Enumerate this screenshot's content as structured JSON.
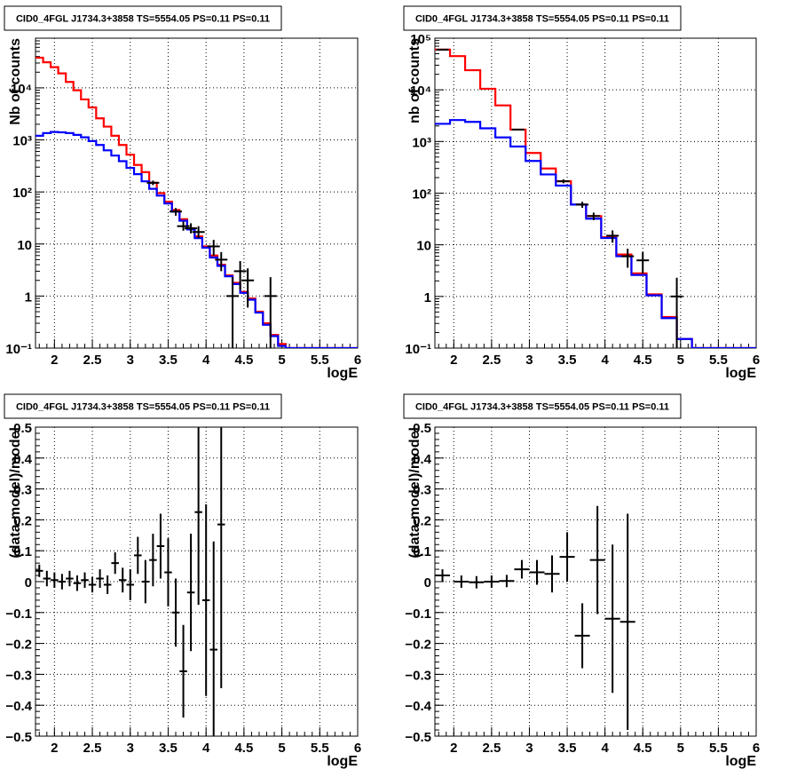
{
  "panel_title": "CID0_4FGL J1734.3+3858 TS=5554.05 PS=0.11 PS=0.11",
  "colors": {
    "data": "#000000",
    "total_model": "#ff0000",
    "source_model": "#0000ff",
    "grid": "#000000"
  },
  "chart_data": [
    {
      "type": "line",
      "title": "CID0_4FGL J1734.3+3858 TS=5554.05 PS=0.11 PS=0.11",
      "xlabel": "logE",
      "ylabel": "Nb of counts",
      "xlim": [
        1.75,
        6.0
      ],
      "ylim": [
        0.1,
        90000
      ],
      "yscale": "log",
      "grid": true,
      "x_ticks": [
        "2",
        "2.5",
        "3",
        "3.5",
        "4",
        "4.5",
        "5",
        "5.5",
        "6"
      ],
      "y_ticks": [
        "10⁻¹",
        "1",
        "10",
        "10²",
        "10³",
        "10⁴"
      ],
      "bin_edges": [
        1.75,
        1.85,
        1.95,
        2.05,
        2.15,
        2.25,
        2.35,
        2.45,
        2.55,
        2.65,
        2.75,
        2.85,
        2.95,
        3.05,
        3.15,
        3.25,
        3.35,
        3.45,
        3.55,
        3.65,
        3.75,
        3.85,
        3.95,
        4.05,
        4.15,
        4.25,
        4.35,
        4.45,
        4.55,
        4.65,
        4.75,
        4.85,
        4.95,
        5.05,
        5.15,
        5.25,
        5.35,
        5.45,
        5.55,
        5.65,
        5.75,
        5.85,
        5.95,
        6.0
      ],
      "series": [
        {
          "name": "",
          "style": "total-model",
          "values": [
            38000,
            31000,
            25000,
            19000,
            13000,
            9000,
            6000,
            4200,
            2600,
            1800,
            1200,
            800,
            520,
            330,
            240,
            150,
            95,
            65,
            45,
            30,
            20,
            14,
            9,
            6,
            4,
            2.5,
            1.8,
            1.2,
            0.9,
            0.5,
            0.3,
            0.18,
            0.12,
            0.1,
            0.1,
            0.1,
            0.1,
            0.1,
            0.1,
            0.1,
            0.1,
            0.1,
            0.1
          ]
        },
        {
          "name": "",
          "style": "source-model",
          "values": [
            1200,
            1350,
            1420,
            1400,
            1350,
            1250,
            1120,
            950,
            800,
            630,
            500,
            390,
            290,
            220,
            160,
            115,
            85,
            60,
            42,
            28,
            19,
            13,
            8.5,
            5.5,
            3.8,
            2.4,
            1.7,
            1.15,
            0.85,
            0.48,
            0.28,
            0.17,
            0.11,
            0.1,
            0.1,
            0.1,
            0.1,
            0.1,
            0.1,
            0.1,
            0.1,
            0.1,
            0.1
          ]
        }
      ],
      "data_points": [
        {
          "x": 3.3,
          "y": 150,
          "ylo": 135,
          "yhi": 165
        },
        {
          "x": 3.6,
          "y": 42,
          "ylo": 35,
          "yhi": 49
        },
        {
          "x": 3.7,
          "y": 22,
          "ylo": 18,
          "yhi": 27
        },
        {
          "x": 3.8,
          "y": 20,
          "ylo": 16,
          "yhi": 25
        },
        {
          "x": 3.9,
          "y": 17,
          "ylo": 13,
          "yhi": 22
        },
        {
          "x": 4.1,
          "y": 9,
          "ylo": 6,
          "yhi": 12
        },
        {
          "x": 4.2,
          "y": 5,
          "ylo": 3,
          "yhi": 7
        },
        {
          "x": 4.35,
          "y": 1,
          "ylo": 0.1,
          "yhi": 2.3
        },
        {
          "x": 4.45,
          "y": 3,
          "ylo": 1.3,
          "yhi": 4.7
        },
        {
          "x": 4.55,
          "y": 2,
          "ylo": 0.6,
          "yhi": 3.4
        },
        {
          "x": 4.85,
          "y": 1,
          "ylo": 0.1,
          "yhi": 2.3
        }
      ]
    },
    {
      "type": "line",
      "title": "CID0_4FGL J1734.3+3858 TS=5554.05 PS=0.11 PS=0.11",
      "xlabel": "logE",
      "ylabel": "nb of counts",
      "xlim": [
        1.75,
        6.0
      ],
      "ylim": [
        0.1,
        100000
      ],
      "yscale": "log",
      "grid": true,
      "x_ticks": [
        "2",
        "2.5",
        "3",
        "3.5",
        "4",
        "4.5",
        "5",
        "5.5",
        "6"
      ],
      "y_ticks": [
        "10⁻¹",
        "1",
        "10",
        "10²",
        "10³",
        "10⁴",
        "10⁵"
      ],
      "bin_edges": [
        1.75,
        1.95,
        2.15,
        2.35,
        2.55,
        2.75,
        2.95,
        3.15,
        3.35,
        3.55,
        3.75,
        3.95,
        4.15,
        4.35,
        4.55,
        4.75,
        4.95,
        5.15,
        5.35,
        5.55,
        5.75,
        5.95,
        6.0
      ],
      "series": [
        {
          "name": "",
          "style": "total-model",
          "values": [
            60000,
            45000,
            24000,
            10500,
            5000,
            1700,
            600,
            300,
            170,
            60,
            36,
            14,
            6.5,
            2.8,
            1.1,
            0.4,
            0.15,
            0.1,
            0.1,
            0.1,
            0.1,
            0.1
          ]
        },
        {
          "name": "",
          "style": "source-model",
          "values": [
            2200,
            2600,
            2400,
            1800,
            1200,
            800,
            420,
            230,
            140,
            60,
            32,
            13.5,
            6,
            2.6,
            1.05,
            0.38,
            0.15,
            0.1,
            0.1,
            0.1,
            0.1,
            0.1
          ]
        }
      ],
      "data_points": [
        {
          "x": 1.85,
          "y": 60000,
          "ylo": 59000,
          "yhi": 61000
        },
        {
          "x": 2.85,
          "y": 1700,
          "ylo": 1650,
          "yhi": 1750
        },
        {
          "x": 3.45,
          "y": 170,
          "ylo": 155,
          "yhi": 185
        },
        {
          "x": 3.7,
          "y": 60,
          "ylo": 52,
          "yhi": 68
        },
        {
          "x": 3.85,
          "y": 36,
          "ylo": 30,
          "yhi": 42
        },
        {
          "x": 4.1,
          "y": 15,
          "ylo": 11,
          "yhi": 19
        },
        {
          "x": 4.3,
          "y": 6,
          "ylo": 3.6,
          "yhi": 8.4
        },
        {
          "x": 4.5,
          "y": 5,
          "ylo": 2.8,
          "yhi": 7.2
        },
        {
          "x": 4.95,
          "y": 1,
          "ylo": 0.1,
          "yhi": 2.3
        }
      ]
    },
    {
      "type": "scatter",
      "title": "CID0_4FGL J1734.3+3858 TS=5554.05 PS=0.11 PS=0.11",
      "xlabel": "logE",
      "ylabel": "(data-model)/model",
      "xlim": [
        1.75,
        6.0
      ],
      "ylim": [
        -0.5,
        0.5
      ],
      "yscale": "linear",
      "grid": true,
      "x_ticks": [
        "2",
        "2.5",
        "3",
        "3.5",
        "4",
        "4.5",
        "5",
        "5.5",
        "6"
      ],
      "y_ticks": [
        "−0.5",
        "−0.4",
        "−0.3",
        "−0.2",
        "−0.1",
        "0",
        "0.1",
        "0.2",
        "0.3",
        "0.4",
        "0.5"
      ],
      "points": [
        {
          "x": 1.8,
          "y": 0.035,
          "err": 0.02,
          "xerr": 0.05
        },
        {
          "x": 1.9,
          "y": 0.01,
          "err": 0.025,
          "xerr": 0.05
        },
        {
          "x": 2.0,
          "y": 0.005,
          "err": 0.025,
          "xerr": 0.05
        },
        {
          "x": 2.1,
          "y": 0.0,
          "err": 0.025,
          "xerr": 0.05
        },
        {
          "x": 2.2,
          "y": 0.01,
          "err": 0.025,
          "xerr": 0.05
        },
        {
          "x": 2.3,
          "y": -0.005,
          "err": 0.025,
          "xerr": 0.05
        },
        {
          "x": 2.4,
          "y": 0.005,
          "err": 0.025,
          "xerr": 0.05
        },
        {
          "x": 2.5,
          "y": -0.01,
          "err": 0.025,
          "xerr": 0.05
        },
        {
          "x": 2.6,
          "y": 0.01,
          "err": 0.03,
          "xerr": 0.05
        },
        {
          "x": 2.7,
          "y": -0.01,
          "err": 0.03,
          "xerr": 0.05
        },
        {
          "x": 2.8,
          "y": 0.06,
          "err": 0.035,
          "xerr": 0.05
        },
        {
          "x": 2.9,
          "y": 0.005,
          "err": 0.04,
          "xerr": 0.05
        },
        {
          "x": 3.0,
          "y": -0.01,
          "err": 0.05,
          "xerr": 0.05
        },
        {
          "x": 3.1,
          "y": 0.085,
          "err": 0.06,
          "xerr": 0.05
        },
        {
          "x": 3.2,
          "y": 0.0,
          "err": 0.07,
          "xerr": 0.05
        },
        {
          "x": 3.3,
          "y": 0.07,
          "err": 0.085,
          "xerr": 0.05
        },
        {
          "x": 3.4,
          "y": 0.115,
          "err": 0.105,
          "xerr": 0.05
        },
        {
          "x": 3.5,
          "y": 0.03,
          "err": 0.11,
          "xerr": 0.05
        },
        {
          "x": 3.6,
          "y": -0.1,
          "err": 0.11,
          "xerr": 0.05
        },
        {
          "x": 3.7,
          "y": -0.29,
          "err": 0.15,
          "xerr": 0.05
        },
        {
          "x": 3.8,
          "y": -0.035,
          "err": 0.19,
          "xerr": 0.05
        },
        {
          "x": 3.9,
          "y": 0.225,
          "err": 0.3,
          "xerr": 0.05
        },
        {
          "x": 4.0,
          "y": -0.06,
          "err": 0.31,
          "xerr": 0.05
        },
        {
          "x": 4.1,
          "y": -0.22,
          "err": 0.35,
          "xerr": 0.05
        },
        {
          "x": 4.2,
          "y": 0.185,
          "err": 0.53,
          "xerr": 0.05
        }
      ]
    },
    {
      "type": "scatter",
      "title": "CID0_4FGL J1734.3+3858 TS=5554.05 PS=0.11 PS=0.11",
      "xlabel": "logE",
      "ylabel": "(data-model)/model",
      "xlim": [
        1.75,
        6.0
      ],
      "ylim": [
        -0.5,
        0.5
      ],
      "yscale": "linear",
      "grid": true,
      "x_ticks": [
        "2",
        "2.5",
        "3",
        "3.5",
        "4",
        "4.5",
        "5",
        "5.5",
        "6"
      ],
      "y_ticks": [
        "−0.5",
        "−0.4",
        "−0.3",
        "−0.2",
        "−0.1",
        "0",
        "0.1",
        "0.2",
        "0.3",
        "0.4",
        "0.5"
      ],
      "points": [
        {
          "x": 1.85,
          "y": 0.02,
          "err": 0.02,
          "xerr": 0.1
        },
        {
          "x": 2.1,
          "y": 0.0,
          "err": 0.02,
          "xerr": 0.1
        },
        {
          "x": 2.3,
          "y": -0.002,
          "err": 0.02,
          "xerr": 0.1
        },
        {
          "x": 2.5,
          "y": 0.0,
          "err": 0.02,
          "xerr": 0.1
        },
        {
          "x": 2.7,
          "y": 0.002,
          "err": 0.02,
          "xerr": 0.1
        },
        {
          "x": 2.9,
          "y": 0.04,
          "err": 0.03,
          "xerr": 0.1
        },
        {
          "x": 3.1,
          "y": 0.03,
          "err": 0.04,
          "xerr": 0.1
        },
        {
          "x": 3.3,
          "y": 0.025,
          "err": 0.06,
          "xerr": 0.1
        },
        {
          "x": 3.5,
          "y": 0.08,
          "err": 0.08,
          "xerr": 0.1
        },
        {
          "x": 3.7,
          "y": -0.175,
          "err": 0.105,
          "xerr": 0.1
        },
        {
          "x": 3.9,
          "y": 0.07,
          "err": 0.175,
          "xerr": 0.1
        },
        {
          "x": 4.1,
          "y": -0.12,
          "err": 0.24,
          "xerr": 0.1
        },
        {
          "x": 4.3,
          "y": -0.13,
          "err": 0.35,
          "xerr": 0.1
        }
      ]
    }
  ]
}
